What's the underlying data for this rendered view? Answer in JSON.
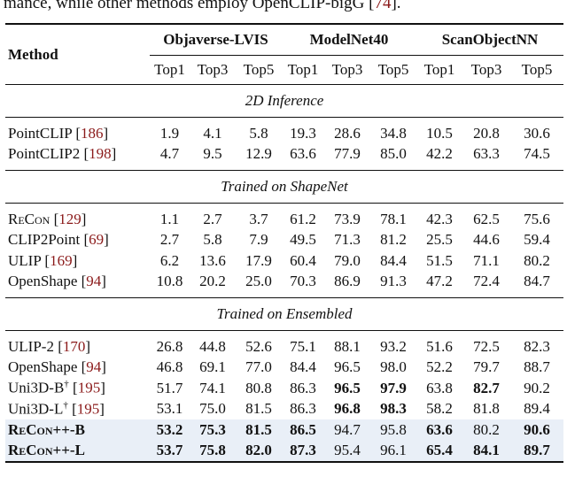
{
  "top_text": {
    "before": "mance, while other methods employ OpenCLIP-bigG [",
    "ref": "74",
    "after": "]."
  },
  "header": {
    "method": "Method",
    "datasets": [
      "Objaverse-LVIS",
      "ModelNet40",
      "ScanObjectNN"
    ],
    "metrics": [
      "Top1",
      "Top3",
      "Top5",
      "Top1",
      "Top3",
      "Top5",
      "Top1",
      "Top3",
      "Top5"
    ]
  },
  "sections": [
    {
      "title": "2D Inference",
      "rows": [
        {
          "name": "PointCLIP",
          "ref": "186",
          "values": [
            "1.9",
            "4.1",
            "5.8",
            "19.3",
            "28.6",
            "34.8",
            "10.5",
            "20.8",
            "30.6"
          ],
          "bold": []
        },
        {
          "name": "PointCLIP2",
          "ref": "198",
          "values": [
            "4.7",
            "9.5",
            "12.9",
            "63.6",
            "77.9",
            "85.0",
            "42.2",
            "63.3",
            "74.5"
          ],
          "bold": []
        }
      ]
    },
    {
      "title": "Trained on ShapeNet",
      "rows": [
        {
          "name": "ReCon",
          "ref": "129",
          "values": [
            "1.1",
            "2.7",
            "3.7",
            "61.2",
            "73.9",
            "78.1",
            "42.3",
            "62.5",
            "75.6"
          ],
          "bold": []
        },
        {
          "name": "CLIP2Point",
          "ref": "69",
          "values": [
            "2.7",
            "5.8",
            "7.9",
            "49.5",
            "71.3",
            "81.2",
            "25.5",
            "44.6",
            "59.4"
          ],
          "bold": []
        },
        {
          "name": "ULIP",
          "ref": "169",
          "values": [
            "6.2",
            "13.6",
            "17.9",
            "60.4",
            "79.0",
            "84.4",
            "51.5",
            "71.1",
            "80.2"
          ],
          "bold": []
        },
        {
          "name": "OpenShape",
          "ref": "94",
          "values": [
            "10.8",
            "20.2",
            "25.0",
            "70.3",
            "86.9",
            "91.3",
            "47.2",
            "72.4",
            "84.7"
          ],
          "bold": []
        }
      ]
    },
    {
      "title": "Trained on Ensembled",
      "rows": [
        {
          "name": "ULIP-2",
          "ref": "170",
          "values": [
            "26.8",
            "44.8",
            "52.6",
            "75.1",
            "88.1",
            "93.2",
            "51.6",
            "72.5",
            "82.3"
          ],
          "bold": []
        },
        {
          "name": "OpenShape",
          "ref": "94",
          "values": [
            "46.8",
            "69.1",
            "77.0",
            "84.4",
            "96.5",
            "98.0",
            "52.2",
            "79.7",
            "88.7"
          ],
          "bold": []
        },
        {
          "name": "Uni3D-B",
          "sup": "†",
          "ref": "195",
          "values": [
            "51.7",
            "74.1",
            "80.8",
            "86.3",
            "96.5",
            "97.9",
            "63.8",
            "82.7",
            "90.2"
          ],
          "bold": [
            4,
            5,
            7
          ]
        },
        {
          "name": "Uni3D-L",
          "sup": "†",
          "ref": "195",
          "values": [
            "53.1",
            "75.0",
            "81.5",
            "86.3",
            "96.8",
            "98.3",
            "58.2",
            "81.8",
            "89.4"
          ],
          "bold": [
            4,
            5
          ]
        },
        {
          "name": "ReCon++-B",
          "values": [
            "53.2",
            "75.3",
            "81.5",
            "86.5",
            "94.7",
            "95.8",
            "63.6",
            "80.2",
            "90.6"
          ],
          "bold": [
            0,
            1,
            2,
            3,
            6,
            8
          ],
          "highlight": true,
          "name_bold": true
        },
        {
          "name": "ReCon++-L",
          "values": [
            "53.7",
            "75.8",
            "82.0",
            "87.3",
            "95.4",
            "96.1",
            "65.4",
            "84.1",
            "89.7"
          ],
          "bold": [
            0,
            1,
            2,
            3,
            6,
            7,
            8
          ],
          "highlight": true,
          "name_bold": true
        }
      ]
    }
  ]
}
